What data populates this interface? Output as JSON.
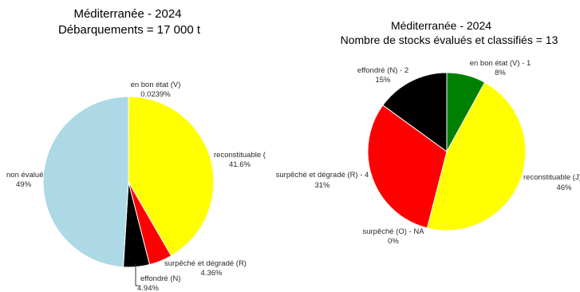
{
  "chart_data": [
    {
      "type": "pie",
      "title": "Méditerranée  -  2024",
      "subtitle": "Débarquements =  17 000 t",
      "slices": [
        {
          "label": "en bon état (V)",
          "value": 0.0239,
          "value_label": "0.0239%",
          "color": "#008000"
        },
        {
          "label": "reconstituable (",
          "value": 41.6,
          "value_label": "41.6%",
          "color": "#ffff00"
        },
        {
          "label": "surpêché et dégradé (R)",
          "value": 4.36,
          "value_label": "4.36%",
          "color": "#ff0000"
        },
        {
          "label": "effondré (N)",
          "value": 4.94,
          "value_label": "4.94%",
          "color": "#000000"
        },
        {
          "label": "non évalué",
          "value": 49,
          "value_label": "49%",
          "color": "#add8e6"
        }
      ]
    },
    {
      "type": "pie",
      "title": "Méditerranée  -  2024",
      "subtitle": "Nombre de stocks évalués et classifiés =  13",
      "slices": [
        {
          "label": "en bon état (V) - 1",
          "value": 8,
          "value_label": "8%",
          "color": "#008000"
        },
        {
          "label": "reconstituable (J)",
          "value": 46,
          "value_label": "46%",
          "color": "#ffff00"
        },
        {
          "label": "surpêché (O) - NA",
          "value": 0,
          "value_label": "0%",
          "color": "#ff8c00"
        },
        {
          "label": "surpêché et dégradé (R) - 4",
          "value": 31,
          "value_label": "31%",
          "color": "#ff0000"
        },
        {
          "label": "effondré (N) - 2",
          "value": 15,
          "value_label": "15%",
          "color": "#000000"
        }
      ]
    }
  ]
}
